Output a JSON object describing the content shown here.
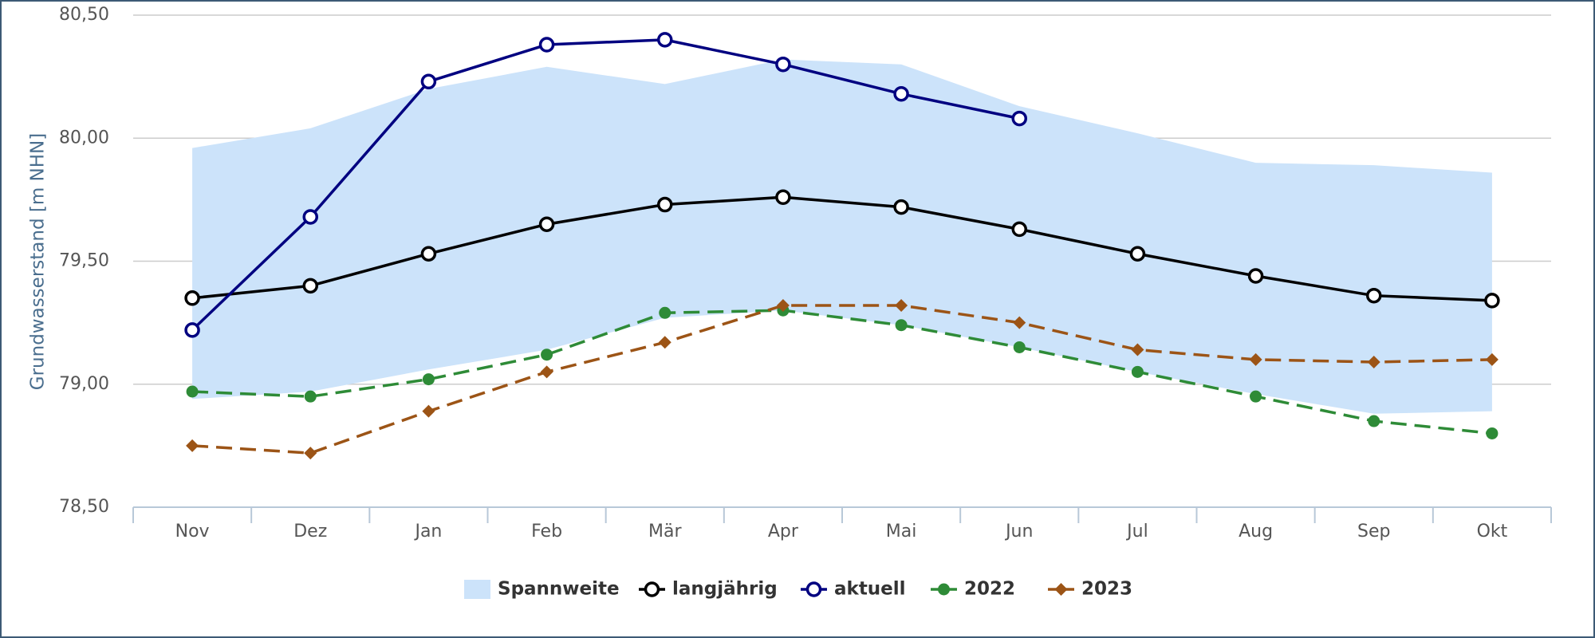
{
  "chart_data": {
    "type": "line",
    "y_label": "Grundwasserstand [m NHN]",
    "categories": [
      "Nov",
      "Dez",
      "Jan",
      "Feb",
      "Mär",
      "Apr",
      "Mai",
      "Jun",
      "Jul",
      "Aug",
      "Sep",
      "Okt"
    ],
    "ylim": [
      78.5,
      80.5
    ],
    "yticks": [
      {
        "value": 78.5,
        "label": "78,50"
      },
      {
        "value": 79,
        "label": "79,00"
      },
      {
        "value": 79.5,
        "label": "79,50"
      },
      {
        "value": 80,
        "label": "80,00"
      },
      {
        "value": 80.5,
        "label": "80,50"
      }
    ],
    "grid": true,
    "range": {
      "name": "Spannweite",
      "color": "#cce3fa",
      "high": [
        79.96,
        80.04,
        80.2,
        80.29,
        80.22,
        80.32,
        80.3,
        80.13,
        80.02,
        79.9,
        79.89,
        79.86
      ],
      "low": [
        78.94,
        78.97,
        79.06,
        79.14,
        79.27,
        79.3,
        79.24,
        79.15,
        79.05,
        78.96,
        78.88,
        78.89
      ]
    },
    "series": [
      {
        "name": "langjährig",
        "color": "#000000",
        "marker": "circle-open",
        "dashed": false,
        "values": [
          79.35,
          79.4,
          79.53,
          79.65,
          79.73,
          79.76,
          79.72,
          79.63,
          79.53,
          79.44,
          79.36,
          79.34
        ]
      },
      {
        "name": "aktuell",
        "color": "#000080",
        "marker": "circle-open",
        "dashed": false,
        "values": [
          79.22,
          79.68,
          80.23,
          80.38,
          80.4,
          80.3,
          80.18,
          80.08,
          null,
          null,
          null,
          null
        ]
      },
      {
        "name": "2022",
        "color": "#2e8b37",
        "marker": "circle",
        "dashed": true,
        "values": [
          78.97,
          78.95,
          79.02,
          79.12,
          79.29,
          79.3,
          79.24,
          79.15,
          79.05,
          78.95,
          78.85,
          78.8
        ]
      },
      {
        "name": "2023",
        "color": "#9c5416",
        "marker": "diamond",
        "dashed": true,
        "values": [
          78.75,
          78.72,
          78.89,
          79.05,
          79.17,
          79.32,
          79.32,
          79.25,
          79.14,
          79.1,
          79.09,
          79.1
        ]
      }
    ]
  }
}
